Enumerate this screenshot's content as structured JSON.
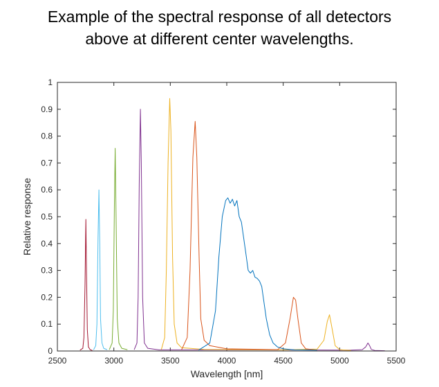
{
  "title": {
    "line1": "Example of the spectral response of all detectors",
    "line2": "above at different center wavelengths."
  },
  "chart_data": {
    "type": "line",
    "title": "Example of the spectral response of all detectors above at different center wavelengths.",
    "xlabel": "Wavelength [nm]",
    "ylabel": "Relative response",
    "xlim": [
      2500,
      5500
    ],
    "ylim": [
      0,
      1
    ],
    "xticks": [
      2500,
      3000,
      3500,
      4000,
      4500,
      5000,
      5500
    ],
    "yticks": [
      0,
      0.1,
      0.2,
      0.3,
      0.4,
      0.5,
      0.6,
      0.7,
      0.8,
      0.9,
      1
    ],
    "ytick_labels": [
      "0",
      "0.1",
      "0.2",
      "0.3",
      "0.4",
      "0.5",
      "0.6",
      "0.7",
      "0.8",
      "0.9",
      "1"
    ],
    "grid": false,
    "box": true,
    "series": [
      {
        "color": "#a2142f",
        "x": [
          2700,
          2725,
          2735,
          2745,
          2752,
          2758,
          2765,
          2775,
          2790,
          2810
        ],
        "y": [
          0.003,
          0.01,
          0.05,
          0.25,
          0.49,
          0.3,
          0.08,
          0.015,
          0.005,
          0.002
        ]
      },
      {
        "color": "#4dbeee",
        "x": [
          2820,
          2840,
          2850,
          2860,
          2868,
          2875,
          2882,
          2895,
          2910,
          2940
        ],
        "y": [
          0.004,
          0.02,
          0.1,
          0.42,
          0.6,
          0.4,
          0.12,
          0.03,
          0.01,
          0.005
        ]
      },
      {
        "color": "#77ac30",
        "x": [
          2960,
          2985,
          2995,
          3005,
          3012,
          3020,
          3030,
          3045,
          3070,
          3120
        ],
        "y": [
          0.005,
          0.03,
          0.15,
          0.55,
          0.755,
          0.5,
          0.12,
          0.03,
          0.01,
          0.005
        ]
      },
      {
        "color": "#7e2f8e",
        "x": [
          3180,
          3205,
          3215,
          3225,
          3235,
          3243,
          3255,
          3270,
          3300,
          3400,
          4400,
          5100,
          5200,
          5230,
          5250,
          5265,
          5280,
          5310,
          5400
        ],
        "y": [
          0.005,
          0.03,
          0.2,
          0.62,
          0.9,
          0.7,
          0.2,
          0.03,
          0.01,
          0.004,
          0.004,
          0.003,
          0.005,
          0.015,
          0.03,
          0.02,
          0.006,
          0.002,
          0.001
        ]
      },
      {
        "color": "#edb120",
        "x": [
          3420,
          3450,
          3465,
          3480,
          3495,
          3505,
          3520,
          3535,
          3560,
          3600,
          3800,
          4500,
          4800,
          4860,
          4890,
          4910,
          4930,
          4960,
          5000,
          5100
        ],
        "y": [
          0.005,
          0.05,
          0.3,
          0.7,
          0.94,
          0.82,
          0.35,
          0.1,
          0.03,
          0.012,
          0.006,
          0.004,
          0.007,
          0.04,
          0.11,
          0.135,
          0.09,
          0.02,
          0.005,
          0.002
        ]
      },
      {
        "color": "#d95319",
        "x": [
          3600,
          3650,
          3675,
          3700,
          3720,
          3735,
          3755,
          3770,
          3800,
          3850,
          4000,
          4450,
          4520,
          4560,
          4590,
          4610,
          4630,
          4660,
          4700,
          4800
        ],
        "y": [
          0.005,
          0.05,
          0.3,
          0.72,
          0.855,
          0.72,
          0.35,
          0.12,
          0.04,
          0.02,
          0.008,
          0.005,
          0.03,
          0.12,
          0.2,
          0.19,
          0.12,
          0.03,
          0.008,
          0.003
        ]
      },
      {
        "color": "#0072bd",
        "x": [
          3750,
          3850,
          3900,
          3930,
          3960,
          3990,
          4010,
          4030,
          4050,
          4070,
          4090,
          4110,
          4130,
          4150,
          4170,
          4190,
          4210,
          4230,
          4250,
          4270,
          4290,
          4310,
          4330,
          4350,
          4380,
          4410,
          4450,
          4500,
          4600,
          4800
        ],
        "y": [
          0.003,
          0.03,
          0.15,
          0.35,
          0.5,
          0.56,
          0.57,
          0.55,
          0.565,
          0.54,
          0.56,
          0.5,
          0.48,
          0.42,
          0.36,
          0.3,
          0.29,
          0.3,
          0.275,
          0.27,
          0.26,
          0.24,
          0.18,
          0.12,
          0.06,
          0.03,
          0.015,
          0.008,
          0.004,
          0.003
        ]
      }
    ]
  }
}
